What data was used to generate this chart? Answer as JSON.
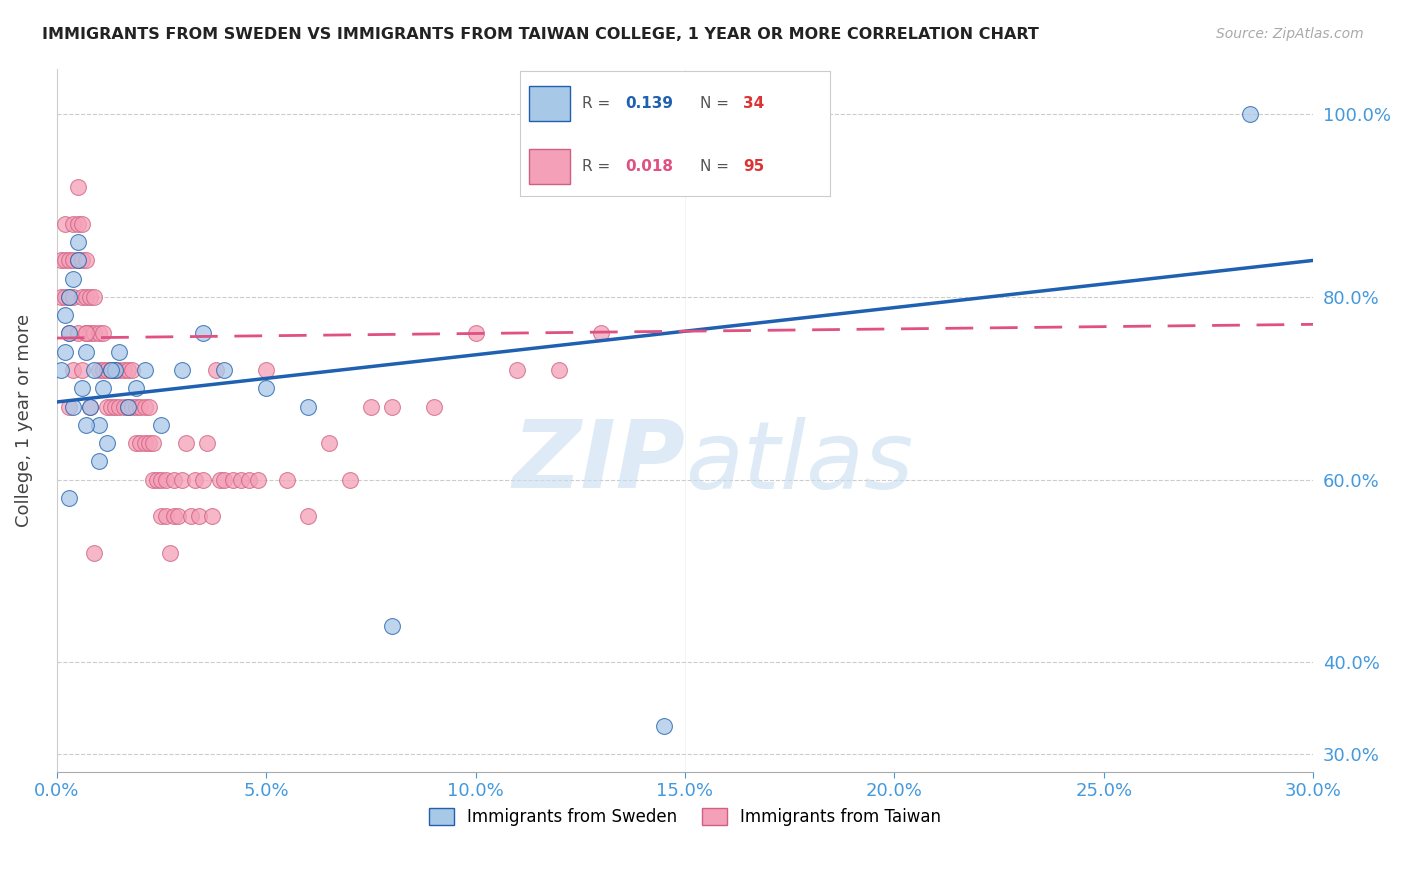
{
  "title": "IMMIGRANTS FROM SWEDEN VS IMMIGRANTS FROM TAIWAN COLLEGE, 1 YEAR OR MORE CORRELATION CHART",
  "source": "Source: ZipAtlas.com",
  "ylabel": "College, 1 year or more",
  "legend_sweden": "Immigrants from Sweden",
  "legend_taiwan": "Immigrants from Taiwan",
  "R_sweden": 0.139,
  "N_sweden": 34,
  "R_taiwan": 0.018,
  "N_taiwan": 95,
  "xmin": 0.0,
  "xmax": 0.3,
  "ymin": 0.28,
  "ymax": 1.05,
  "color_sweden": "#a8c8e8",
  "color_taiwan": "#f4a0b8",
  "color_trendline_sweden": "#2060b0",
  "color_trendline_taiwan": "#e05080",
  "color_axis_labels": "#4499dd",
  "color_grid": "#cccccc",
  "watermark_color": "#c8dff0",
  "sweden_trendline_y0": 0.685,
  "sweden_trendline_y1": 0.84,
  "taiwan_trendline_y0": 0.755,
  "taiwan_trendline_y1": 0.77,
  "sweden_x": [
    0.001,
    0.002,
    0.002,
    0.003,
    0.003,
    0.004,
    0.005,
    0.005,
    0.006,
    0.007,
    0.008,
    0.009,
    0.01,
    0.011,
    0.012,
    0.014,
    0.015,
    0.017,
    0.019,
    0.021,
    0.025,
    0.03,
    0.035,
    0.04,
    0.05,
    0.06,
    0.08,
    0.01,
    0.007,
    0.004,
    0.003,
    0.013,
    0.145,
    0.285
  ],
  "sweden_y": [
    0.72,
    0.74,
    0.78,
    0.76,
    0.8,
    0.82,
    0.84,
    0.86,
    0.7,
    0.74,
    0.68,
    0.72,
    0.66,
    0.7,
    0.64,
    0.72,
    0.74,
    0.68,
    0.7,
    0.72,
    0.66,
    0.72,
    0.76,
    0.72,
    0.7,
    0.68,
    0.44,
    0.62,
    0.66,
    0.68,
    0.58,
    0.72,
    0.33,
    1.0
  ],
  "taiwan_x": [
    0.001,
    0.001,
    0.002,
    0.002,
    0.002,
    0.003,
    0.003,
    0.003,
    0.004,
    0.004,
    0.004,
    0.005,
    0.005,
    0.005,
    0.006,
    0.006,
    0.006,
    0.007,
    0.007,
    0.007,
    0.008,
    0.008,
    0.009,
    0.009,
    0.01,
    0.01,
    0.011,
    0.011,
    0.012,
    0.012,
    0.013,
    0.013,
    0.014,
    0.014,
    0.015,
    0.015,
    0.016,
    0.016,
    0.017,
    0.017,
    0.018,
    0.018,
    0.019,
    0.019,
    0.02,
    0.02,
    0.021,
    0.021,
    0.022,
    0.022,
    0.023,
    0.023,
    0.024,
    0.025,
    0.025,
    0.026,
    0.026,
    0.027,
    0.028,
    0.028,
    0.029,
    0.03,
    0.031,
    0.032,
    0.033,
    0.034,
    0.035,
    0.036,
    0.037,
    0.038,
    0.039,
    0.04,
    0.042,
    0.044,
    0.046,
    0.048,
    0.05,
    0.055,
    0.06,
    0.065,
    0.07,
    0.075,
    0.08,
    0.09,
    0.1,
    0.11,
    0.12,
    0.13,
    0.003,
    0.004,
    0.005,
    0.006,
    0.007,
    0.008,
    0.009
  ],
  "taiwan_y": [
    0.8,
    0.84,
    0.8,
    0.84,
    0.88,
    0.76,
    0.8,
    0.84,
    0.8,
    0.84,
    0.88,
    0.84,
    0.88,
    0.92,
    0.8,
    0.84,
    0.88,
    0.76,
    0.8,
    0.84,
    0.76,
    0.8,
    0.76,
    0.8,
    0.72,
    0.76,
    0.72,
    0.76,
    0.68,
    0.72,
    0.68,
    0.72,
    0.68,
    0.72,
    0.68,
    0.72,
    0.68,
    0.72,
    0.68,
    0.72,
    0.68,
    0.72,
    0.64,
    0.68,
    0.64,
    0.68,
    0.64,
    0.68,
    0.64,
    0.68,
    0.6,
    0.64,
    0.6,
    0.56,
    0.6,
    0.56,
    0.6,
    0.52,
    0.56,
    0.6,
    0.56,
    0.6,
    0.64,
    0.56,
    0.6,
    0.56,
    0.6,
    0.64,
    0.56,
    0.72,
    0.6,
    0.6,
    0.6,
    0.6,
    0.6,
    0.6,
    0.72,
    0.6,
    0.56,
    0.64,
    0.6,
    0.68,
    0.68,
    0.68,
    0.76,
    0.72,
    0.72,
    0.76,
    0.68,
    0.72,
    0.76,
    0.72,
    0.76,
    0.68,
    0.52
  ]
}
